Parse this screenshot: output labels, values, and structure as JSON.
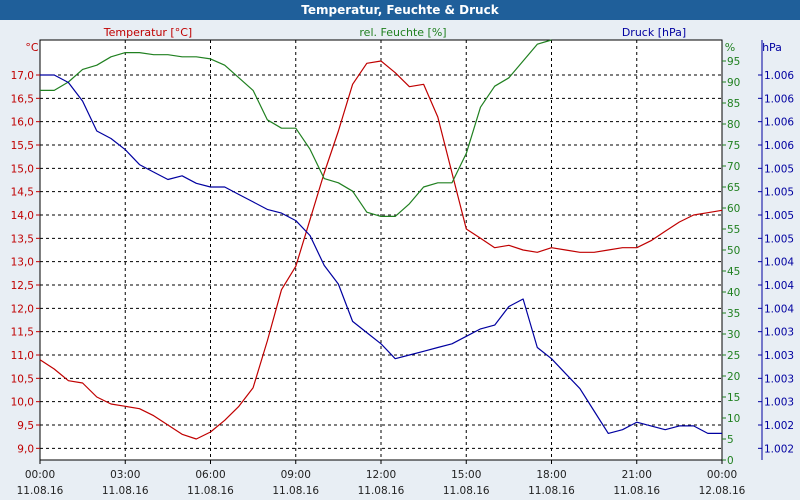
{
  "title": "Temperatur, Feuchte & Druck",
  "colors": {
    "background": "#e8eef4",
    "titlebar": "#1f5f9a",
    "temperature": "#c00000",
    "humidity": "#208020",
    "pressure": "#0000a0",
    "grid": "#000000"
  },
  "chart_data": {
    "type": "line",
    "grid": true,
    "x_ticks": [
      {
        "time": "00:00",
        "date": "11.08.16"
      },
      {
        "time": "03:00",
        "date": "11.08.16"
      },
      {
        "time": "06:00",
        "date": "11.08.16"
      },
      {
        "time": "09:00",
        "date": "11.08.16"
      },
      {
        "time": "12:00",
        "date": "11.08.16"
      },
      {
        "time": "15:00",
        "date": "11.08.16"
      },
      {
        "time": "18:00",
        "date": "11.08.16"
      },
      {
        "time": "21:00",
        "date": "11.08.16"
      },
      {
        "time": "00:00",
        "date": "12.08.16"
      }
    ],
    "xlim": [
      0,
      24
    ],
    "axes": {
      "temperature": {
        "label": "Temperatur [°C]",
        "unit": "°C",
        "ylim": [
          8.75,
          17.75
        ],
        "ticks": [
          "17,0",
          "16,5",
          "16,0",
          "15,5",
          "15,0",
          "14,5",
          "14,0",
          "13,5",
          "13,0",
          "12,5",
          "12,0",
          "11,5",
          "11,0",
          "10,5",
          "10,0",
          "9,5",
          "9,0"
        ],
        "tick_values": [
          17.0,
          16.5,
          16.0,
          15.5,
          15.0,
          14.5,
          14.0,
          13.5,
          13.0,
          12.5,
          12.0,
          11.5,
          11.0,
          10.5,
          10.0,
          9.5,
          9.0
        ]
      },
      "humidity": {
        "label": "rel. Feuchte [%]",
        "unit": "%",
        "ylim": [
          0,
          100
        ],
        "ticks": [
          "95",
          "90",
          "85",
          "80",
          "75",
          "70",
          "65",
          "60",
          "55",
          "50",
          "45",
          "40",
          "35",
          "30",
          "25",
          "20",
          "15",
          "10",
          "5",
          "0"
        ],
        "tick_values": [
          95,
          90,
          85,
          80,
          75,
          70,
          65,
          60,
          55,
          50,
          45,
          40,
          35,
          30,
          25,
          20,
          15,
          10,
          5,
          0
        ]
      },
      "pressure": {
        "label": "Druck [hPa]",
        "unit": "hPa",
        "ticks": [
          "1.006",
          "1.006",
          "1.006",
          "1.006",
          "1.005",
          "1.005",
          "1.005",
          "1.005",
          "1.004",
          "1.004",
          "1.004",
          "1.003",
          "1.003",
          "1.003",
          "1.003",
          "1.002",
          "1.002"
        ]
      }
    },
    "series": [
      {
        "name": "Temperatur [°C]",
        "axis": "temperature",
        "x": [
          0,
          0.5,
          1,
          1.5,
          2,
          2.5,
          3,
          3.5,
          4,
          4.5,
          5,
          5.5,
          6,
          6.5,
          7,
          7.5,
          8,
          8.5,
          9,
          9.5,
          10,
          10.5,
          11,
          11.5,
          12,
          12.5,
          13,
          13.5,
          14,
          14.5,
          15,
          15.5,
          16,
          16.5,
          17,
          17.5,
          18,
          18.5,
          19,
          19.5,
          20,
          20.5,
          21,
          21.5,
          22,
          22.5,
          23,
          23.5,
          24
        ],
        "values": [
          10.9,
          10.7,
          10.45,
          10.4,
          10.1,
          9.95,
          9.9,
          9.85,
          9.7,
          9.5,
          9.3,
          9.2,
          9.35,
          9.6,
          9.9,
          10.3,
          11.3,
          12.4,
          12.9,
          13.9,
          14.9,
          15.8,
          16.8,
          17.25,
          17.3,
          17.05,
          16.75,
          16.8,
          16.1,
          14.9,
          13.7,
          13.5,
          13.3,
          13.35,
          13.25,
          13.2,
          13.3,
          13.25,
          13.2,
          13.2,
          13.25,
          13.3,
          13.3,
          13.45,
          13.65,
          13.85,
          14.0,
          14.05,
          14.1
        ]
      },
      {
        "name": "rel. Feuchte [%]",
        "axis": "humidity",
        "x": [
          0,
          0.5,
          1,
          1.5,
          2,
          2.5,
          3,
          3.5,
          4,
          4.5,
          5,
          5.5,
          6,
          6.5,
          7,
          7.5,
          8,
          8.5,
          9,
          9.5,
          10,
          10.5,
          11,
          11.5,
          12,
          12.5,
          13,
          13.5,
          14,
          14.5,
          15,
          15.5,
          16,
          16.5,
          17,
          17.5,
          18
        ],
        "values": [
          88,
          88,
          90,
          93,
          94,
          96,
          97,
          97,
          96.5,
          96.5,
          96,
          96,
          95.5,
          94,
          91,
          88,
          81,
          79,
          79,
          74,
          67,
          66,
          64,
          59,
          58,
          58,
          61,
          65,
          66,
          66,
          73,
          84,
          89,
          91,
          95,
          99,
          100
        ]
      },
      {
        "name": "Druck [hPa]",
        "axis": "pressure",
        "values_unit": "relative level (0 = 1.002 tick, 1 = top 1.006 tick)",
        "x": [
          0,
          0.5,
          1,
          1.5,
          2,
          2.5,
          3,
          3.5,
          4,
          4.5,
          5,
          5.5,
          6,
          6.5,
          7,
          7.5,
          8,
          8.5,
          9,
          9.5,
          10,
          10.5,
          11,
          11.5,
          12,
          12.5,
          13,
          13.5,
          14,
          14.5,
          15,
          15.5,
          16,
          16.5,
          17,
          17.5,
          18,
          18.5,
          19,
          19.5,
          20,
          20.5,
          21,
          21.5,
          22,
          22.5,
          23,
          23.5,
          24
        ],
        "values": [
          1.0,
          1.0,
          0.98,
          0.93,
          0.85,
          0.83,
          0.8,
          0.76,
          0.74,
          0.72,
          0.73,
          0.71,
          0.7,
          0.7,
          0.68,
          0.66,
          0.64,
          0.63,
          0.61,
          0.57,
          0.49,
          0.44,
          0.34,
          0.31,
          0.28,
          0.24,
          0.25,
          0.26,
          0.27,
          0.28,
          0.3,
          0.32,
          0.33,
          0.38,
          0.4,
          0.27,
          0.24,
          0.2,
          0.16,
          0.1,
          0.04,
          0.05,
          0.07,
          0.06,
          0.05,
          0.06,
          0.06,
          0.04,
          0.04
        ]
      }
    ]
  }
}
